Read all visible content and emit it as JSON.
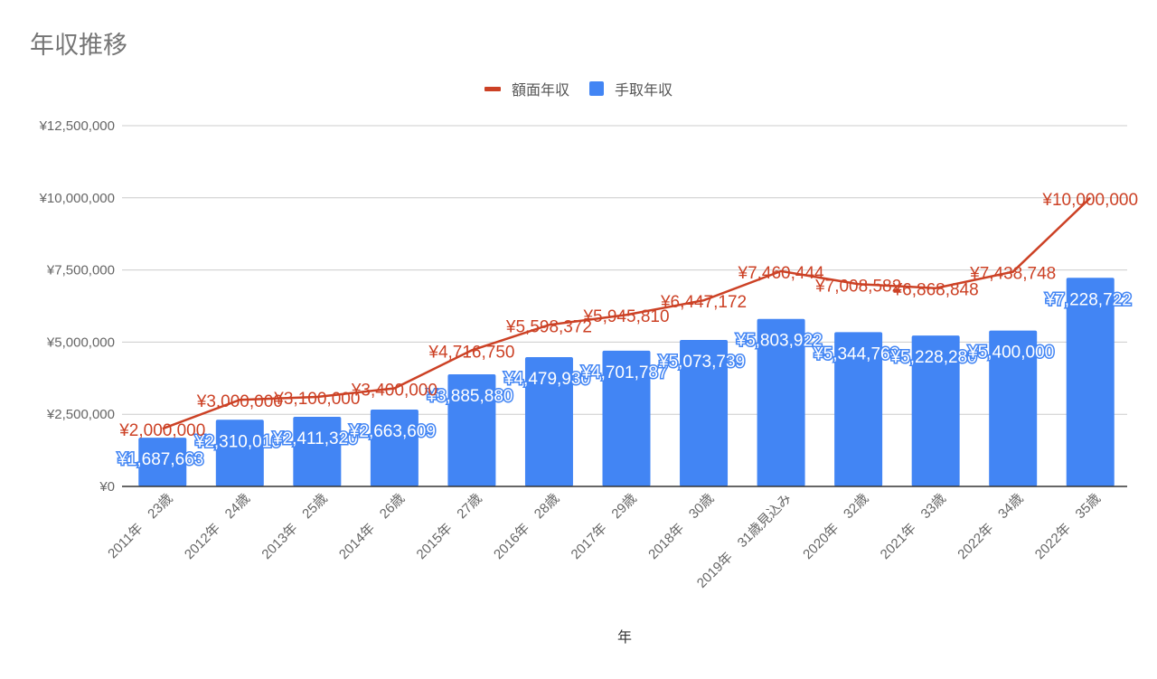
{
  "title": "年収推移",
  "legend": [
    {
      "label": "額面年収",
      "color": "#cc4125",
      "type": "line"
    },
    {
      "label": "手取年収",
      "color": "#4285f4",
      "type": "bar"
    }
  ],
  "chart_data": {
    "type": "bar",
    "title": "年収推移",
    "xlabel": "年",
    "ylabel": "",
    "ylim": [
      0,
      12500000
    ],
    "yticks": [
      "¥0",
      "¥2,500,000",
      "¥5,000,000",
      "¥7,500,000",
      "¥10,000,000",
      "¥12,500,000"
    ],
    "ytick_values": [
      0,
      2500000,
      5000000,
      7500000,
      10000000,
      12500000
    ],
    "grid": true,
    "legend_position": "top",
    "categories": [
      "2011年　23歳",
      "2012年　24歳",
      "2013年　25歳",
      "2014年　26歳",
      "2015年　27歳",
      "2016年　28歳",
      "2017年　29歳",
      "2018年　30歳",
      "2019年　31歳見込み",
      "2020年　32歳",
      "2021年　33歳",
      "2022年　34歳",
      "2022年　35歳"
    ],
    "series": [
      {
        "name": "額面年収",
        "type": "line",
        "color": "#cc4125",
        "values": [
          2000000,
          3000000,
          3100000,
          3400000,
          4716750,
          5598372,
          5945810,
          6447172,
          7460444,
          7008582,
          6868848,
          7438748,
          10000000
        ],
        "labels": [
          "¥2,000,000",
          "¥3,000,000",
          "¥3,100,000",
          "¥3,400,000",
          "¥4,716,750",
          "¥5,598,372",
          "¥5,945,810",
          "¥6,447,172",
          "¥7,460,444",
          "¥7,008,582",
          "¥6,868,848",
          "¥7,438,748",
          "¥10,000,000"
        ]
      },
      {
        "name": "手取年収",
        "type": "bar",
        "color": "#4285f4",
        "values": [
          1687663,
          2310010,
          2411320,
          2663609,
          3885880,
          4479930,
          4701787,
          5073739,
          5803922,
          5344760,
          5228280,
          5400000,
          7228722
        ],
        "labels": [
          "¥1,687,663",
          "¥2,310,010",
          "¥2,411,320",
          "¥2,663,609",
          "¥3,885,880",
          "¥4,479,930",
          "¥4,701,787",
          "¥5,073,739",
          "¥5,803,922",
          "¥5,344,760",
          "¥5,228,280",
          "¥5,400,000",
          "¥7,228,722"
        ]
      }
    ]
  }
}
